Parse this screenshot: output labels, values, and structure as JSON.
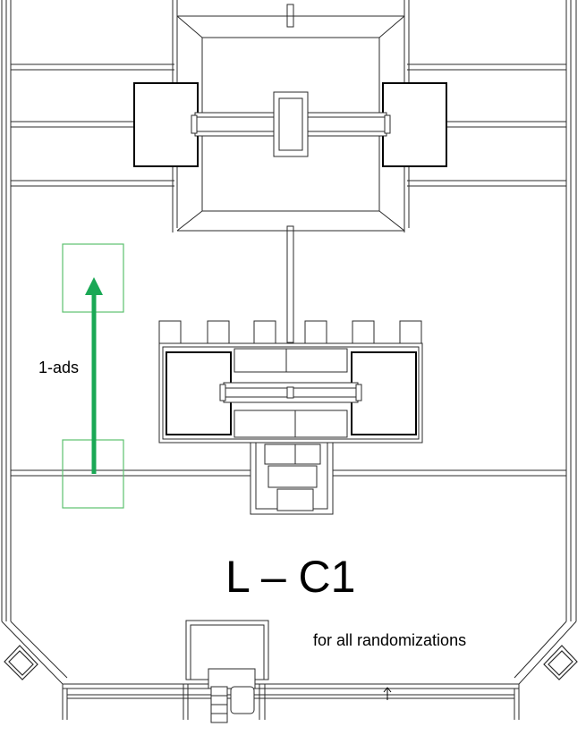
{
  "diagram": {
    "room_label": "L – C1",
    "move_label": "1-ads",
    "note_label": "for all randomizations",
    "colors": {
      "line": "#2b2b2b",
      "heavy": "#000000",
      "accent": "#1aa855",
      "box": "#5cc06f"
    }
  }
}
